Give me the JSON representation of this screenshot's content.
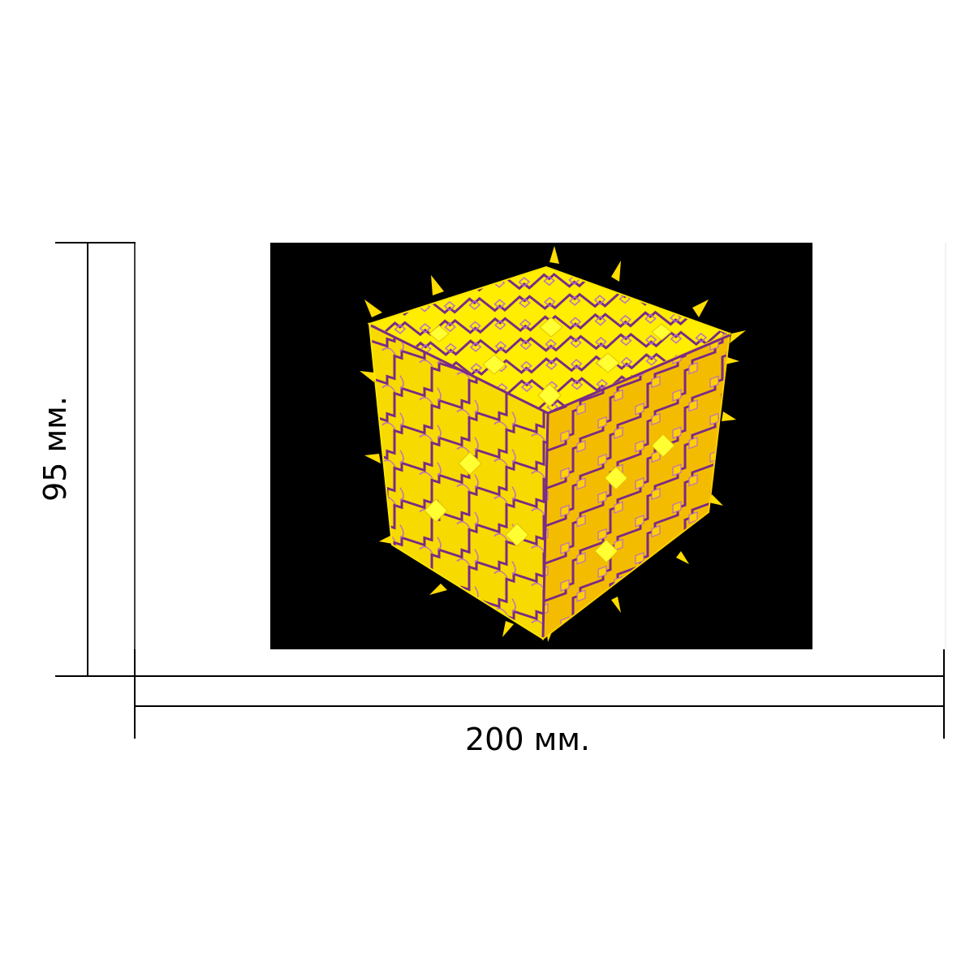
{
  "dimensions": {
    "height_label": "95 мм.",
    "width_label": "200 мм."
  },
  "photo": {
    "background": "#000000",
    "colors": {
      "face_top": "#ffee00",
      "face_left": "#f5d600",
      "face_right": "#f2b400",
      "trim": "#7a2a86",
      "trim_light": "#b86cc8"
    }
  }
}
